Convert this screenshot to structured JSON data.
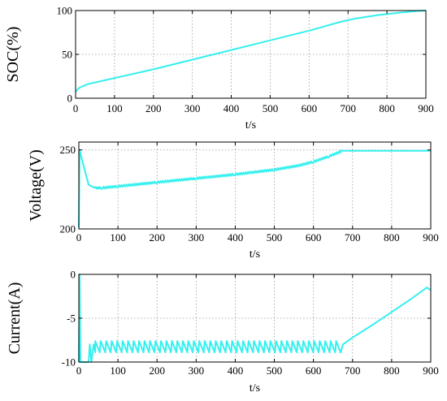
{
  "chart_data": [
    {
      "type": "line",
      "ylabel": "SOC(%)",
      "xlabel": "t/s",
      "xlim": [
        0,
        900
      ],
      "ylim": [
        0,
        100
      ],
      "xticks": [
        "0",
        "100",
        "200",
        "300",
        "400",
        "500",
        "600",
        "700",
        "800",
        "900"
      ],
      "yticks": [
        "0",
        "50",
        "100"
      ],
      "grid": true,
      "line_color": "#33f0ee",
      "series": [
        {
          "x": [
            0,
            5,
            10,
            20,
            30,
            50,
            100,
            200,
            300,
            400,
            500,
            600,
            680,
            720,
            780,
            840,
            880,
            900
          ],
          "y": [
            7,
            10,
            12,
            14,
            16,
            18,
            23,
            33,
            44,
            55,
            66,
            77,
            87,
            91,
            95,
            98,
            99.5,
            100
          ]
        }
      ]
    },
    {
      "type": "line",
      "ylabel": "Voltage(V)",
      "xlabel": "t/s",
      "xlim": [
        0,
        900
      ],
      "ylim": [
        200,
        255
      ],
      "xticks": [
        "0",
        "100",
        "200",
        "300",
        "400",
        "500",
        "600",
        "700",
        "800",
        "900"
      ],
      "yticks": [
        "200",
        "250"
      ],
      "grid": true,
      "line_color": "#33f0ee",
      "series": [
        {
          "x": [
            0,
            2,
            10,
            25,
            40,
            60,
            100,
            200,
            300,
            400,
            500,
            560,
            600,
            640,
            675,
            680,
            900
          ],
          "y": [
            201,
            250,
            242,
            228,
            226,
            226,
            227,
            229.5,
            232,
            234.5,
            237.5,
            240,
            242.5,
            246,
            249.5,
            249.5,
            249.5
          ],
          "ripple": 1.2
        }
      ]
    },
    {
      "type": "line",
      "ylabel": "Current(A)",
      "xlabel": "t/s",
      "xlim": [
        0,
        900
      ],
      "ylim": [
        -10,
        0
      ],
      "xticks": [
        "0",
        "100",
        "200",
        "300",
        "400",
        "500",
        "600",
        "700",
        "800",
        "900"
      ],
      "yticks": [
        "-10",
        "-5",
        "0"
      ],
      "grid": true,
      "line_color": "#33f0ee",
      "series": [
        {
          "x": [
            0,
            2,
            4,
            25,
            28,
            32,
            38,
            42,
            670,
            675,
            700,
            750,
            800,
            850,
            890,
            900
          ],
          "y": [
            -10,
            0,
            -10,
            -10,
            -8,
            -10,
            -8,
            -8.9,
            -8.9,
            -8,
            -7.2,
            -5.8,
            -4.3,
            -2.8,
            -1.5,
            -1.8
          ],
          "sawtooth": {
            "from": 42,
            "to": 670,
            "period": 14,
            "low": -8.9,
            "high": -7.6
          }
        }
      ]
    }
  ]
}
